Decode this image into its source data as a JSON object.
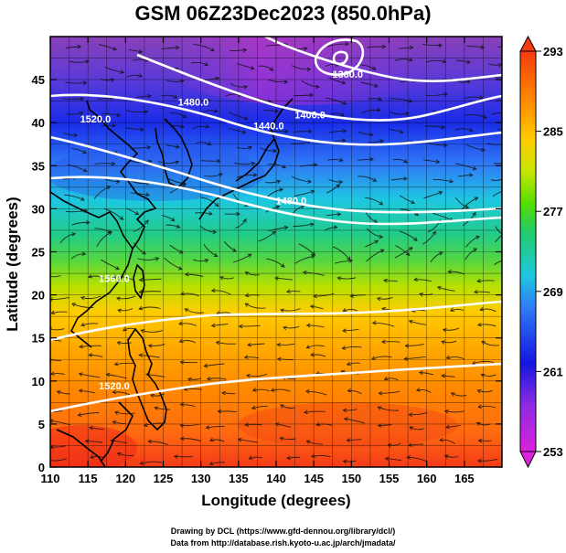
{
  "title": "GSM 06Z23Dec2023 (850.0hPa)",
  "chart_data": {
    "type": "heatmap",
    "xlabel": "Longitude (degrees)",
    "ylabel": "Latitude  (degrees)",
    "xlim": [
      110,
      170
    ],
    "ylim": [
      0,
      50
    ],
    "x_ticks": [
      "110",
      "115",
      "120",
      "125",
      "130",
      "135",
      "140",
      "145",
      "150",
      "155",
      "160",
      "165"
    ],
    "y_ticks": [
      "0",
      "5",
      "10",
      "15",
      "20",
      "25",
      "30",
      "35",
      "40",
      "45"
    ],
    "colorbar": {
      "min": 253,
      "max": 293,
      "tick_labels": [
        "293",
        "285",
        "277",
        "269",
        "261",
        "253"
      ],
      "colors": [
        "#dd22dd",
        "#8a2be2",
        "#1515e0",
        "#2f7cf6",
        "#1ec8e0",
        "#22cc66",
        "#55dd00",
        "#c8e600",
        "#ffcc00",
        "#ff8800",
        "#f43a10"
      ]
    },
    "contour_labels": [
      {
        "text": "1360.0",
        "lon": 149.5,
        "lat": 45.2
      },
      {
        "text": "1400.0",
        "lon": 144.5,
        "lat": 40.5
      },
      {
        "text": "1440.0",
        "lon": 139.0,
        "lat": 39.2
      },
      {
        "text": "1480.0",
        "lon": 129.0,
        "lat": 42.0
      },
      {
        "text": "1520.0",
        "lon": 116.0,
        "lat": 40.0
      },
      {
        "text": "1480.0",
        "lon": 142.0,
        "lat": 30.5
      },
      {
        "text": "1560.0",
        "lon": 118.5,
        "lat": 21.5
      },
      {
        "text": "1520.0",
        "lon": 118.5,
        "lat": 9.0
      }
    ]
  },
  "credits": {
    "line1": "Drawing by DCL (https://www.gfd-dennou.org/library/dcl/)",
    "line2": "Data from http://database.rish.kyoto-u.ac.jp/arch/jmadata/"
  }
}
